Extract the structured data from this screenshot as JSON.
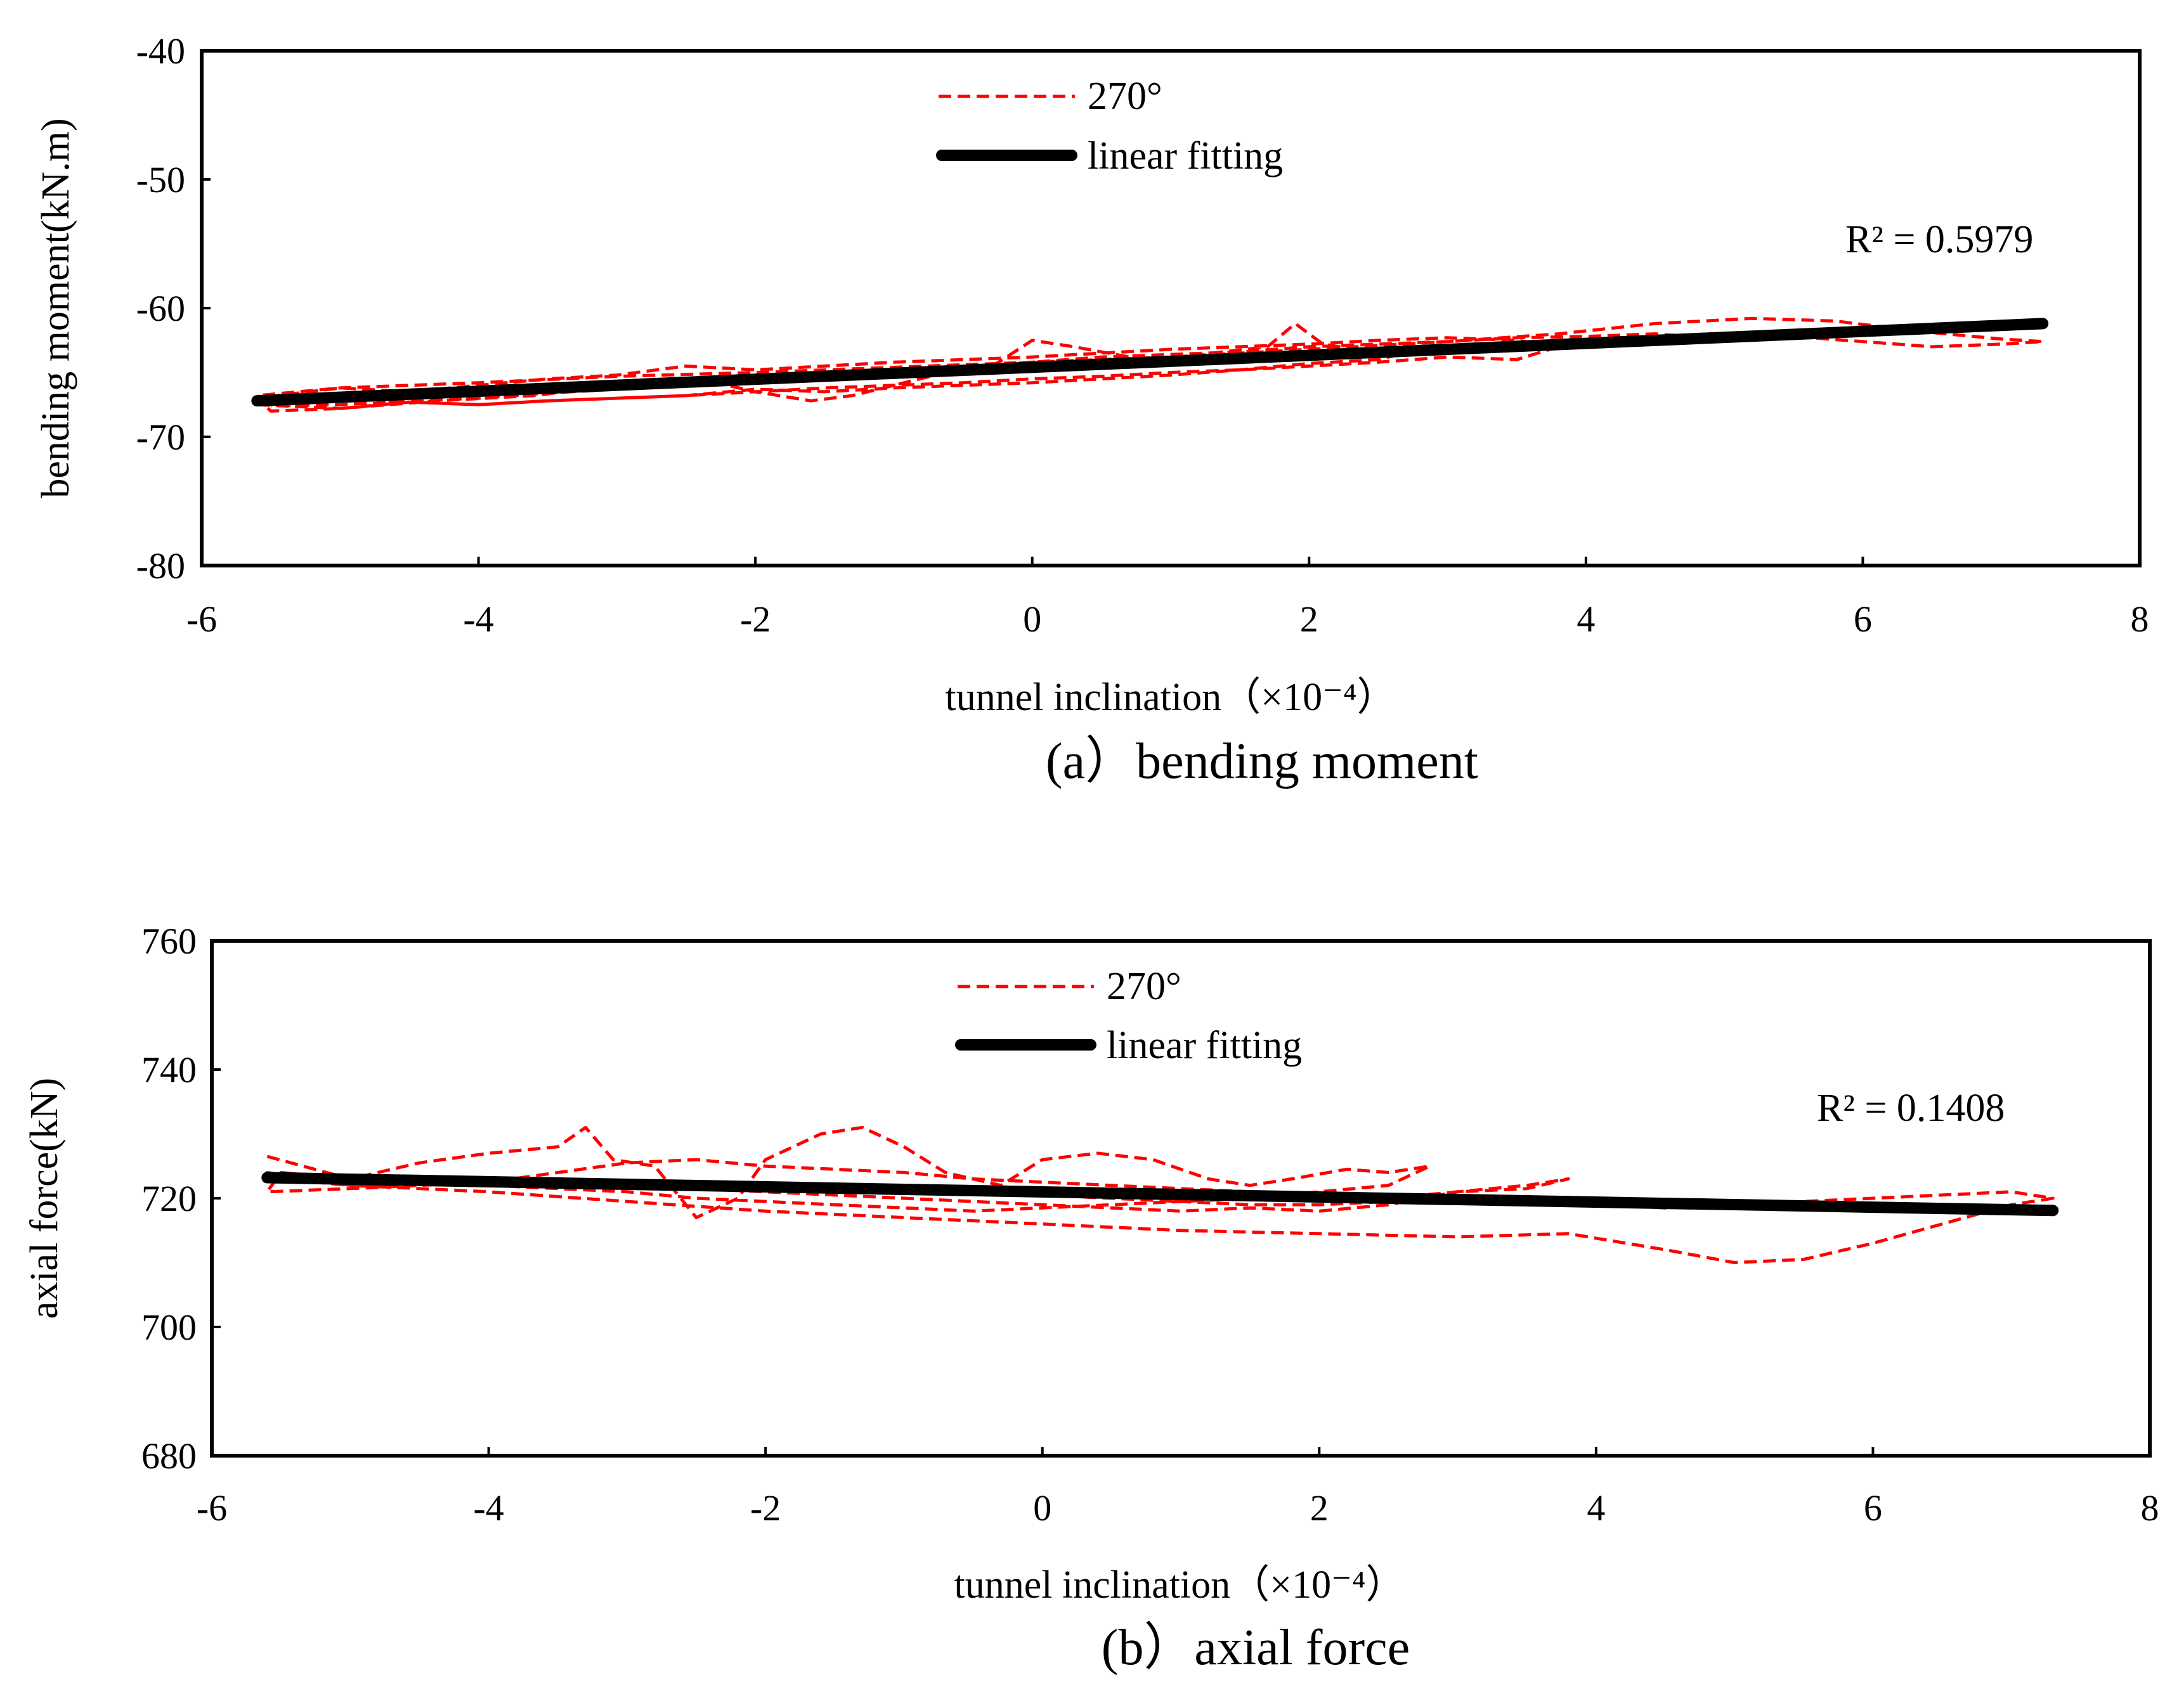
{
  "chart_data": [
    {
      "type": "line",
      "id": "a",
      "caption": "(a）bending moment",
      "xlabel": "tunnel inclination（×10⁻⁴）",
      "ylabel": "bending moment(kN.m)",
      "xlim": [
        -6,
        8
      ],
      "ylim": [
        -80,
        -40
      ],
      "xticks": [
        "-6",
        "-4",
        "-2",
        "0",
        "2",
        "4",
        "6",
        "8"
      ],
      "yticks": [
        "-40",
        "-50",
        "-60",
        "-70",
        "-80"
      ],
      "annotation": "R² = 0.5979",
      "legend": [
        "270°",
        "linear fitting"
      ],
      "series": [
        {
          "name": "270°",
          "style": "dashed",
          "color": "#ff0000",
          "x": [
            -5.6,
            -5.0,
            -4.3,
            -3.6,
            -3.0,
            -2.4,
            -2.0,
            -1.6,
            -1.3,
            -1.0,
            -0.7,
            -0.3,
            0.0,
            0.3,
            0.7,
            1.0,
            1.3,
            1.7,
            1.9,
            2.1,
            2.5,
            2.8,
            2.5,
            2.0,
            1.5,
            1.0,
            0.5,
            0.0,
            -0.5,
            -1.0,
            -1.5,
            -2.0,
            -2.5,
            -3.0,
            -3.5,
            -4.0,
            -4.5,
            -5.0,
            -5.5,
            -5.6,
            -5.0,
            -4.5,
            -4.0,
            -3.5,
            -3.0,
            -2.5,
            -2.0,
            -1.5,
            -1.0,
            -0.5,
            0.0,
            0.5,
            1.0,
            1.5,
            2.0,
            2.5,
            3.0,
            3.5,
            3.8,
            3.5,
            3.0,
            2.5,
            2.0,
            1.5,
            1.0,
            0.5,
            0.0,
            -0.5,
            -1.0,
            -1.5,
            -2.0,
            -2.5,
            -3.0,
            -3.5,
            -4.0,
            -4.5,
            -5.0,
            -5.5,
            -5.6,
            -5.0,
            -4.0,
            -3.0,
            -2.0,
            -1.0,
            0.0,
            1.0,
            2.0,
            3.0,
            3.8,
            4.5,
            5.2,
            5.8,
            6.4,
            7.0,
            7.3,
            7.0,
            6.5,
            6.0,
            5.5,
            5.0,
            4.5,
            4.0,
            3.5,
            3.0,
            2.5,
            2.0,
            1.5,
            1.0,
            0.5,
            0.0,
            -0.5,
            -1.0,
            -1.5,
            -2.0,
            -2.5,
            -3.0,
            -3.5,
            -4.0,
            -4.5,
            -5.0,
            -5.5
          ],
          "y": [
            -67.5,
            -67.8,
            -67.2,
            -66.8,
            -66.0,
            -65.5,
            -66.5,
            -67.2,
            -66.8,
            -66.0,
            -65.2,
            -64.6,
            -62.5,
            -63.0,
            -63.8,
            -64.0,
            -63.5,
            -63.0,
            -61.2,
            -62.8,
            -63.5,
            -63.2,
            -64.0,
            -64.3,
            -64.8,
            -65.2,
            -65.5,
            -65.8,
            -66.0,
            -66.2,
            -66.5,
            -66.3,
            -66.8,
            -67.0,
            -67.2,
            -67.5,
            -67.3,
            -67.8,
            -68.0,
            -67.0,
            -66.2,
            -66.5,
            -66.0,
            -65.5,
            -65.2,
            -64.5,
            -64.8,
            -64.5,
            -64.2,
            -64.0,
            -63.8,
            -63.5,
            -63.2,
            -63.0,
            -62.8,
            -62.5,
            -62.3,
            -62.5,
            -63.0,
            -64.0,
            -63.8,
            -64.2,
            -64.5,
            -64.8,
            -65.0,
            -65.3,
            -65.5,
            -65.8,
            -66.0,
            -66.2,
            -66.5,
            -66.8,
            -67.0,
            -67.2,
            -67.5,
            -67.3,
            -67.0,
            -67.4,
            -66.8,
            -66.2,
            -65.8,
            -65.3,
            -65.0,
            -64.6,
            -64.2,
            -63.8,
            -63.2,
            -62.6,
            -62.0,
            -61.2,
            -60.8,
            -61.0,
            -61.8,
            -62.4,
            -62.6,
            -62.8,
            -63.0,
            -62.6,
            -62.2,
            -62.4,
            -62.0,
            -62.2,
            -62.3,
            -62.6,
            -62.8,
            -63.0,
            -63.4,
            -63.6,
            -63.8,
            -64.2,
            -64.6,
            -65.0,
            -65.4,
            -65.8,
            -66.0,
            -66.3,
            -66.6,
            -67.0,
            -67.2,
            -67.5,
            -67.6
          ]
        },
        {
          "name": "linear fitting",
          "style": "solid",
          "color": "#000000",
          "x": [
            -5.6,
            7.3
          ],
          "y": [
            -67.2,
            -61.2
          ]
        }
      ]
    },
    {
      "type": "line",
      "id": "b",
      "caption": "(b）axial force",
      "xlabel": "tunnel inclination（×10⁻⁴）",
      "ylabel": "axial force(kN)",
      "xlim": [
        -6,
        8
      ],
      "ylim": [
        680,
        760
      ],
      "xticks": [
        "-6",
        "-4",
        "-2",
        "0",
        "2",
        "4",
        "6",
        "8"
      ],
      "yticks": [
        "760",
        "740",
        "720",
        "700",
        "680"
      ],
      "annotation": "R² = 0.1408",
      "legend": [
        "270°",
        "linear fitting"
      ],
      "series": [
        {
          "name": "270°",
          "style": "dashed",
          "color": "#ff0000",
          "x": [
            -5.6,
            -5.0,
            -4.5,
            -4.0,
            -3.5,
            -3.3,
            -3.1,
            -2.8,
            -2.5,
            -2.2,
            -2.0,
            -1.6,
            -1.3,
            -1.0,
            -0.7,
            -0.3,
            0.0,
            0.4,
            0.8,
            1.2,
            1.5,
            1.8,
            2.2,
            2.5,
            2.8,
            2.5,
            2.0,
            1.5,
            1.0,
            0.5,
            0.0,
            -0.5,
            -1.0,
            -1.5,
            -2.0,
            -2.5,
            -3.0,
            -3.5,
            -4.0,
            -4.5,
            -5.0,
            -5.5,
            -5.6,
            -5.0,
            -4.0,
            -3.0,
            -2.5,
            -2.0,
            -1.5,
            -1.0,
            -0.5,
            0.0,
            0.5,
            1.0,
            1.5,
            2.0,
            2.5,
            3.0,
            3.5,
            3.8,
            3.5,
            3.0,
            2.5,
            2.0,
            1.5,
            1.0,
            0.5,
            0.0,
            -0.5,
            -1.0,
            -1.5,
            -2.0,
            -2.5,
            -3.0,
            -3.5,
            -4.0,
            -4.5,
            -5.0,
            -5.5,
            -5.6,
            -5.0,
            -4.0,
            -3.0,
            -2.0,
            -1.0,
            0.0,
            1.0,
            2.0,
            3.0,
            3.8,
            4.5,
            5.0,
            5.5,
            6.0,
            6.5,
            7.0,
            7.3,
            7.0,
            6.5,
            6.0,
            5.5,
            5.0,
            4.5,
            4.0,
            3.5,
            3.0,
            2.5,
            2.0,
            1.5,
            1.0,
            0.5,
            0.0,
            -0.5,
            -1.0,
            -1.5,
            -2.0,
            -2.5,
            -3.0,
            -3.5,
            -4.0,
            -4.5,
            -5.0,
            -5.5
          ],
          "y": [
            726.5,
            723.0,
            725.5,
            727.0,
            728.0,
            731.0,
            726.0,
            725.0,
            717.0,
            720.0,
            726.0,
            730.0,
            731.0,
            728.0,
            724.0,
            722.0,
            726.0,
            727.0,
            726.0,
            723.0,
            722.0,
            723.0,
            724.5,
            724.0,
            725.0,
            722.0,
            721.0,
            720.0,
            719.5,
            719.0,
            718.5,
            718.0,
            718.5,
            719.0,
            719.5,
            720.0,
            721.0,
            721.5,
            722.0,
            722.5,
            723.0,
            724.0,
            721.0,
            721.5,
            722.5,
            725.5,
            726.0,
            725.0,
            724.5,
            724.0,
            723.0,
            722.5,
            722.0,
            721.5,
            721.0,
            720.5,
            720.0,
            721.0,
            721.5,
            723.0,
            722.0,
            721.0,
            719.0,
            718.0,
            718.5,
            718.0,
            718.5,
            719.0,
            719.5,
            720.0,
            720.5,
            721.0,
            721.5,
            722.0,
            722.5,
            723.0,
            722.5,
            722.0,
            723.0,
            724.0,
            722.0,
            721.0,
            719.5,
            718.0,
            717.0,
            716.0,
            715.0,
            714.5,
            714.0,
            714.5,
            712.0,
            710.0,
            710.5,
            713.0,
            716.0,
            719.0,
            720.0,
            721.0,
            720.5,
            720.0,
            719.5,
            719.0,
            718.5,
            719.0,
            719.5,
            720.0,
            719.5,
            719.0,
            719.0,
            719.5,
            720.0,
            720.5,
            721.0,
            721.5,
            722.0,
            722.0,
            722.5,
            722.5,
            723.0,
            722.0,
            723.0,
            723.0,
            724.0
          ]
        },
        {
          "name": "linear fitting",
          "style": "solid",
          "color": "#000000",
          "x": [
            -5.6,
            7.3
          ],
          "y": [
            723.2,
            718.1
          ]
        }
      ]
    }
  ]
}
